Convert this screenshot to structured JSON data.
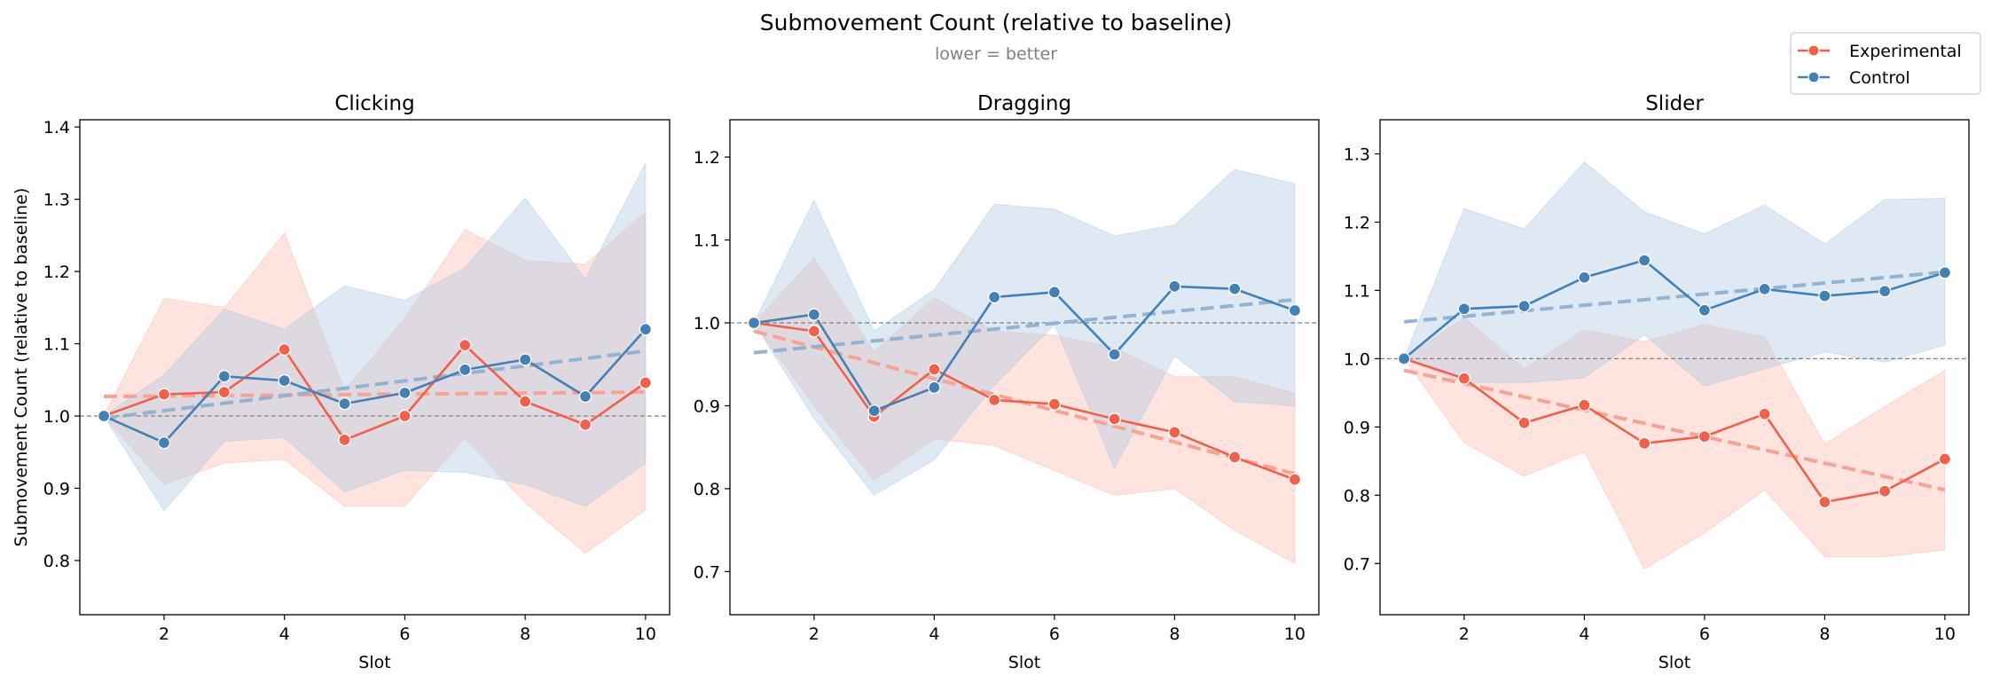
{
  "figure": {
    "title": "Submovement Count (relative to baseline)",
    "subtitle": "lower = better"
  },
  "legend": {
    "placement": "top-right",
    "entries": [
      {
        "label": "Experimental",
        "color": "#f26049"
      },
      {
        "label": "Control",
        "color": "#4380b6"
      }
    ]
  },
  "colors": {
    "experimental": "#f26049",
    "experimental_fill": "#fcbcb0",
    "experimental_trend": "#f7a392",
    "control": "#4380b6",
    "control_fill": "#b3cae3",
    "control_trend": "#93b3d4",
    "baseline": "#808080"
  },
  "chart_data": [
    {
      "type": "line",
      "title": "Clicking",
      "xlabel": "Slot",
      "ylabel": "Submovement Count (relative to baseline)",
      "x": [
        1,
        2,
        3,
        4,
        5,
        6,
        7,
        8,
        9,
        10
      ],
      "xlim": [
        0.6,
        10.4
      ],
      "ylim": [
        0.725,
        1.41
      ],
      "xticks": [
        2,
        4,
        6,
        8,
        10
      ],
      "yticks": [
        0.8,
        0.9,
        1.0,
        1.1,
        1.2,
        1.3,
        1.4
      ],
      "reference_line": 1.0,
      "series": [
        {
          "name": "Experimental",
          "values": [
            1.0,
            1.03,
            1.033,
            1.092,
            0.967,
            1.0,
            1.098,
            1.02,
            0.988,
            1.046
          ],
          "lower": [
            1.0,
            0.905,
            0.935,
            0.94,
            0.875,
            0.875,
            0.97,
            0.88,
            0.81,
            0.87
          ],
          "upper": [
            1.0,
            1.163,
            1.15,
            1.253,
            1.035,
            1.135,
            1.258,
            1.215,
            1.21,
            1.282
          ],
          "trend": [
            1.027,
            1.033
          ]
        },
        {
          "name": "Control",
          "values": [
            1.0,
            0.963,
            1.055,
            1.049,
            1.017,
            1.032,
            1.064,
            1.078,
            1.027,
            1.12
          ],
          "lower": [
            1.0,
            0.869,
            0.965,
            0.97,
            0.895,
            0.925,
            0.922,
            0.905,
            0.875,
            0.935
          ],
          "upper": [
            1.0,
            1.057,
            1.148,
            1.12,
            1.18,
            1.16,
            1.205,
            1.302,
            1.19,
            1.35
          ],
          "trend": [
            0.997,
            1.09
          ]
        }
      ]
    },
    {
      "type": "line",
      "title": "Dragging",
      "xlabel": "Slot",
      "ylabel": "",
      "x": [
        1,
        2,
        3,
        4,
        5,
        6,
        7,
        8,
        9,
        10
      ],
      "xlim": [
        0.6,
        10.4
      ],
      "ylim": [
        0.648,
        1.245
      ],
      "xticks": [
        2,
        4,
        6,
        8,
        10
      ],
      "yticks": [
        0.7,
        0.8,
        0.9,
        1.0,
        1.1,
        1.2
      ],
      "reference_line": 1.0,
      "series": [
        {
          "name": "Experimental",
          "values": [
            1.0,
            0.99,
            0.887,
            0.944,
            0.907,
            0.902,
            0.884,
            0.868,
            0.838,
            0.811
          ],
          "lower": [
            1.0,
            0.9,
            0.81,
            0.86,
            0.852,
            0.822,
            0.792,
            0.8,
            0.75,
            0.71
          ],
          "upper": [
            1.0,
            1.078,
            0.965,
            1.03,
            0.99,
            0.985,
            0.97,
            0.935,
            0.935,
            0.915
          ],
          "trend": [
            0.99,
            0.818
          ]
        },
        {
          "name": "Control",
          "values": [
            1.0,
            1.01,
            0.894,
            0.922,
            1.031,
            1.037,
            0.962,
            1.044,
            1.041,
            1.015
          ],
          "lower": [
            1.0,
            0.885,
            0.792,
            0.835,
            0.925,
            0.998,
            0.825,
            0.96,
            0.905,
            0.9
          ],
          "upper": [
            1.0,
            1.148,
            0.99,
            1.04,
            1.143,
            1.137,
            1.105,
            1.118,
            1.185,
            1.168
          ],
          "trend": [
            0.964,
            1.028
          ]
        }
      ]
    },
    {
      "type": "line",
      "title": "Slider",
      "xlabel": "Slot",
      "ylabel": "",
      "x": [
        1,
        2,
        3,
        4,
        5,
        6,
        7,
        8,
        9,
        10
      ],
      "xlim": [
        0.6,
        10.4
      ],
      "ylim": [
        0.625,
        1.35
      ],
      "xticks": [
        2,
        4,
        6,
        8,
        10
      ],
      "yticks": [
        0.7,
        0.8,
        0.9,
        1.0,
        1.1,
        1.2,
        1.3
      ],
      "reference_line": 1.0,
      "series": [
        {
          "name": "Experimental",
          "values": [
            1.0,
            0.971,
            0.906,
            0.932,
            0.876,
            0.886,
            0.919,
            0.79,
            0.806,
            0.853
          ],
          "lower": [
            1.0,
            0.877,
            0.828,
            0.864,
            0.692,
            0.745,
            0.808,
            0.71,
            0.71,
            0.72
          ],
          "upper": [
            1.0,
            1.06,
            0.985,
            1.042,
            1.025,
            1.05,
            1.032,
            0.875,
            0.93,
            0.983
          ],
          "trend": [
            0.983,
            0.808
          ]
        },
        {
          "name": "Control",
          "values": [
            1.0,
            1.073,
            1.077,
            1.119,
            1.144,
            1.071,
            1.102,
            1.092,
            1.099,
            1.126
          ],
          "lower": [
            1.0,
            0.965,
            0.965,
            0.972,
            1.035,
            0.96,
            0.985,
            1.01,
            0.995,
            1.02
          ],
          "upper": [
            1.0,
            1.22,
            1.19,
            1.288,
            1.215,
            1.183,
            1.225,
            1.168,
            1.233,
            1.235
          ],
          "trend": [
            1.054,
            1.127
          ]
        }
      ]
    }
  ]
}
